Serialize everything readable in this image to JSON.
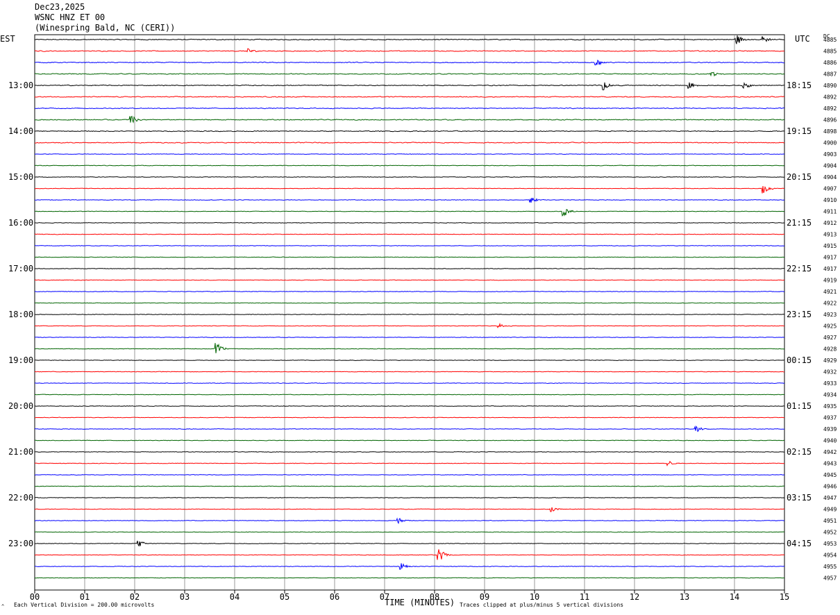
{
  "header": {
    "date": "Dec23,2025",
    "station": "WSNC HNZ ET 00",
    "location": "(Winespring Bald, NC (CERI))"
  },
  "labels": {
    "left_timezone": "EST",
    "right_timezone": "UTC",
    "dc_header": "DC"
  },
  "footer": {
    "scale_note": "Each Vertical Division =  200.00 microvolts",
    "clip_note": "Traces clipped at plus/minus 5 vertical divisions",
    "corner_mark": "^"
  },
  "colors": {
    "trace_cycle": [
      "#000000",
      "#ff0000",
      "#0000ff",
      "#006400"
    ],
    "grid": "#808080"
  },
  "chart_data": {
    "type": "line",
    "title": "",
    "xlabel": "TIME (MINUTES)",
    "xlim": [
      0,
      15
    ],
    "x_ticks": [
      "00",
      "01",
      "02",
      "03",
      "04",
      "05",
      "06",
      "07",
      "08",
      "09",
      "10",
      "11",
      "12",
      "13",
      "14",
      "15"
    ],
    "left_hour_labels": [
      "13:00",
      "14:00",
      "15:00",
      "16:00",
      "17:00",
      "18:00",
      "19:00",
      "20:00",
      "21:00",
      "22:00",
      "23:00"
    ],
    "right_hour_labels": [
      "18:15",
      "19:15",
      "20:15",
      "21:15",
      "22:15",
      "23:15",
      "00:15",
      "01:15",
      "02:15",
      "03:15",
      "04:15"
    ],
    "trace_count": 48,
    "dc_offsets": [
      "4885",
      "4885",
      "4886",
      "4887",
      "4890",
      "4892",
      "4892",
      "4896",
      "4898",
      "4900",
      "4903",
      "4904",
      "4904",
      "4907",
      "4910",
      "4911",
      "4912",
      "4913",
      "4915",
      "4917",
      "4917",
      "4919",
      "4921",
      "4922",
      "4923",
      "4925",
      "4927",
      "4928",
      "4929",
      "4932",
      "4933",
      "4934",
      "4935",
      "4937",
      "4939",
      "4940",
      "4942",
      "4943",
      "4945",
      "4946",
      "4947",
      "4949",
      "4951",
      "4952",
      "4953",
      "4954",
      "4955",
      "4957"
    ],
    "events": [
      {
        "trace": 0,
        "minute": 14.05,
        "amplitude": 2.5
      },
      {
        "trace": 0,
        "minute": 14.6,
        "amplitude": 1.5
      },
      {
        "trace": 1,
        "minute": 4.3,
        "amplitude": 1.2
      },
      {
        "trace": 2,
        "minute": 11.25,
        "amplitude": 1.6
      },
      {
        "trace": 3,
        "minute": 13.55,
        "amplitude": 1.4
      },
      {
        "trace": 4,
        "minute": 11.4,
        "amplitude": 2.2
      },
      {
        "trace": 4,
        "minute": 13.1,
        "amplitude": 1.8
      },
      {
        "trace": 4,
        "minute": 14.2,
        "amplitude": 1.8
      },
      {
        "trace": 7,
        "minute": 1.95,
        "amplitude": 2.0
      },
      {
        "trace": 13,
        "minute": 14.6,
        "amplitude": 2.6
      },
      {
        "trace": 14,
        "minute": 9.95,
        "amplitude": 1.4
      },
      {
        "trace": 15,
        "minute": 10.6,
        "amplitude": 2.4
      },
      {
        "trace": 25,
        "minute": 9.3,
        "amplitude": 1.2
      },
      {
        "trace": 27,
        "minute": 3.65,
        "amplitude": 2.8
      },
      {
        "trace": 34,
        "minute": 13.25,
        "amplitude": 1.4
      },
      {
        "trace": 37,
        "minute": 12.7,
        "amplitude": 1.0
      },
      {
        "trace": 41,
        "minute": 10.35,
        "amplitude": 1.2
      },
      {
        "trace": 42,
        "minute": 7.3,
        "amplitude": 1.2
      },
      {
        "trace": 44,
        "minute": 2.1,
        "amplitude": 1.4
      },
      {
        "trace": 45,
        "minute": 8.1,
        "amplitude": 3.5
      },
      {
        "trace": 46,
        "minute": 7.35,
        "amplitude": 1.6
      }
    ]
  }
}
